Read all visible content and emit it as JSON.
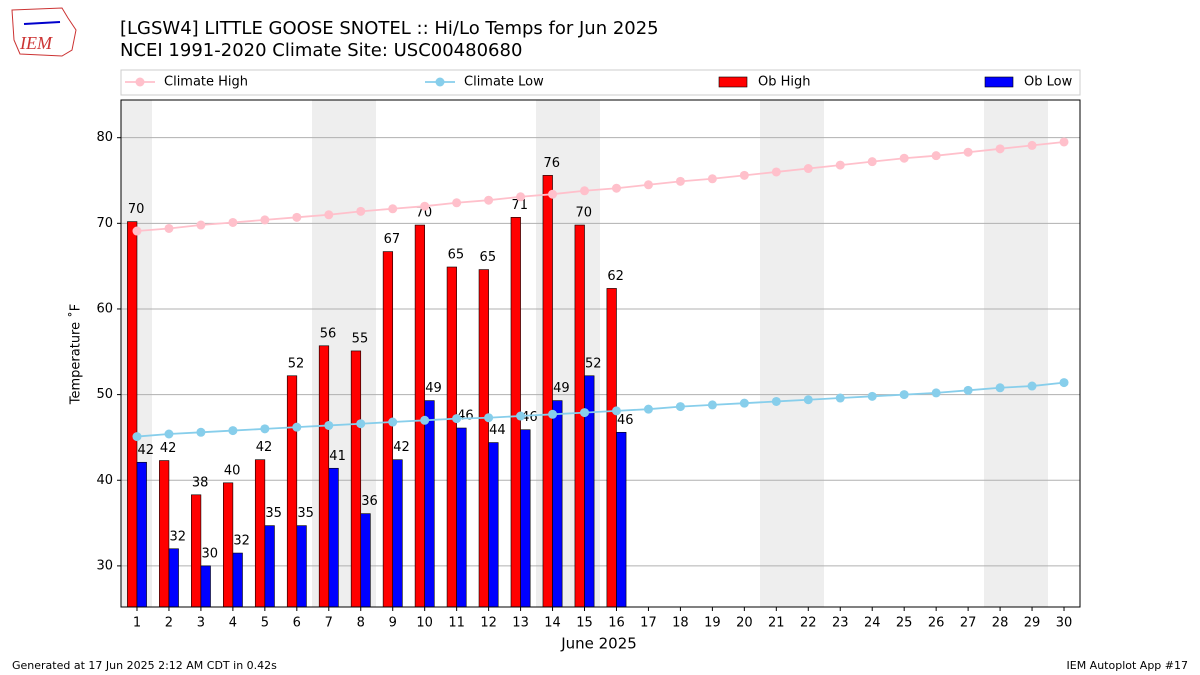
{
  "chart_data": {
    "type": "bar",
    "title": "[LGSW4] LITTLE GOOSE SNOTEL :: Hi/Lo Temps for Jun 2025",
    "subtitle": "NCEI 1991-2020 Climate Site: USC00480680",
    "xlabel": "June 2025",
    "ylabel": "Temperature ˚F",
    "logo_text": "IEM",
    "footer_left": "Generated at 17 Jun 2025 2:12 AM CDT in 0.42s",
    "footer_right": "IEM Autoplot App #17",
    "x": [
      1,
      2,
      3,
      4,
      5,
      6,
      7,
      8,
      9,
      10,
      11,
      12,
      13,
      14,
      15,
      16,
      17,
      18,
      19,
      20,
      21,
      22,
      23,
      24,
      25,
      26,
      27,
      28,
      29,
      30
    ],
    "xlim": [
      0.5,
      30.5
    ],
    "xticks": [
      1,
      2,
      3,
      4,
      5,
      6,
      7,
      8,
      9,
      10,
      11,
      12,
      13,
      14,
      15,
      16,
      17,
      18,
      19,
      20,
      21,
      22,
      23,
      24,
      25,
      26,
      27,
      28,
      29,
      30
    ],
    "ylim": [
      25.2,
      84.4
    ],
    "yticks": [
      30,
      40,
      50,
      60,
      70,
      80
    ],
    "grid": true,
    "series": [
      {
        "name": "Climate High",
        "type": "line",
        "color": "#ffc0cb",
        "values": [
          69.1,
          69.4,
          69.8,
          70.1,
          70.4,
          70.7,
          71.0,
          71.4,
          71.7,
          72.0,
          72.4,
          72.7,
          73.1,
          73.4,
          73.8,
          74.1,
          74.5,
          74.9,
          75.2,
          75.6,
          76.0,
          76.4,
          76.8,
          77.2,
          77.6,
          77.9,
          78.3,
          78.7,
          79.1,
          79.5
        ]
      },
      {
        "name": "Climate Low",
        "type": "line",
        "color": "#87ceeb",
        "values": [
          45.1,
          45.4,
          45.6,
          45.8,
          46.0,
          46.2,
          46.4,
          46.6,
          46.8,
          47.0,
          47.2,
          47.3,
          47.5,
          47.7,
          47.9,
          48.1,
          48.3,
          48.6,
          48.8,
          49.0,
          49.2,
          49.4,
          49.6,
          49.8,
          50.0,
          50.2,
          50.5,
          50.8,
          51.0,
          51.4
        ]
      },
      {
        "name": "Ob High",
        "type": "bar",
        "color": "#ff0000",
        "values": [
          70.2,
          42.3,
          38.3,
          39.7,
          42.4,
          52.2,
          55.7,
          55.1,
          66.7,
          69.8,
          64.9,
          64.6,
          70.7,
          75.6,
          69.8,
          62.4,
          null,
          null,
          null,
          null,
          null,
          null,
          null,
          null,
          null,
          null,
          null,
          null,
          null,
          null
        ],
        "value_labels": [
          "70",
          "42",
          "38",
          "40",
          "42",
          "52",
          "56",
          "55",
          "67",
          "70",
          "65",
          "65",
          "71",
          "76",
          "70",
          "62",
          null,
          null,
          null,
          null,
          null,
          null,
          null,
          null,
          null,
          null,
          null,
          null,
          null,
          null
        ]
      },
      {
        "name": "Ob Low",
        "type": "bar",
        "color": "#0000ff",
        "values": [
          42.1,
          32.0,
          30.0,
          31.5,
          34.7,
          34.7,
          41.4,
          36.1,
          42.4,
          49.3,
          46.1,
          44.4,
          45.9,
          49.3,
          52.2,
          45.6,
          null,
          null,
          null,
          null,
          null,
          null,
          null,
          null,
          null,
          null,
          null,
          null,
          null,
          null
        ],
        "value_labels": [
          "42",
          "32",
          "30",
          "32",
          "35",
          "35",
          "41",
          "36",
          "42",
          "49",
          "46",
          "44",
          "46",
          "49",
          "52",
          "46",
          null,
          null,
          null,
          null,
          null,
          null,
          null,
          null,
          null,
          null,
          null,
          null,
          null,
          null
        ]
      }
    ]
  }
}
